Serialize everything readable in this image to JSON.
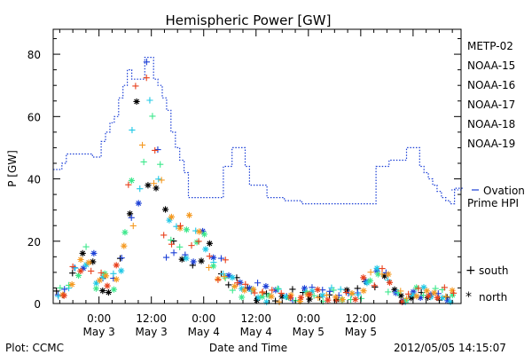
{
  "chart_data": {
    "type": "scatter",
    "title": "Hemispheric Power [GW]",
    "ylabel": "P [GW]",
    "xlabel": "Date and Time",
    "ylim": [
      0,
      88
    ],
    "xlim_hours": [
      -10.5,
      83
    ],
    "yticks": [
      0,
      20,
      40,
      60,
      80
    ],
    "xticks": [
      {
        "h": 0,
        "time": "0:00",
        "date": "May 3"
      },
      {
        "h": 12,
        "time": "12:00",
        "date": "May 3"
      },
      {
        "h": 24,
        "time": "0:00",
        "date": "May 4"
      },
      {
        "h": 36,
        "time": "12:00",
        "date": "May 4"
      },
      {
        "h": 48,
        "time": "0:00",
        "date": "May 5"
      },
      {
        "h": 60,
        "time": "12:00",
        "date": "May 5"
      }
    ],
    "legend": [
      {
        "name": "METP-02",
        "color": "#000000"
      },
      {
        "name": "NOAA-15",
        "color": "#1b3fd6"
      },
      {
        "name": "NOAA-16",
        "color": "#1ec8e6"
      },
      {
        "name": "NOAA-17",
        "color": "#3de88c"
      },
      {
        "name": "NOAA-18",
        "color": "#f59a22"
      },
      {
        "name": "NOAA-19",
        "color": "#e8401c"
      }
    ],
    "ovation": {
      "label_line1": "Ovation",
      "label_line2": "Prime HPI",
      "color": "#1b3fd6",
      "step_hours": 1,
      "values": [
        43,
        43,
        45,
        48,
        48,
        48,
        48,
        48,
        48,
        47,
        47,
        52,
        55,
        58,
        60,
        66,
        70,
        75,
        72,
        72,
        72,
        79,
        79,
        72,
        70,
        66,
        62,
        55,
        50,
        46,
        42,
        34,
        34,
        34,
        34,
        34,
        34,
        34,
        34,
        44,
        44,
        50,
        50,
        50,
        44,
        38,
        38,
        38,
        38,
        34,
        34,
        34,
        34,
        33,
        33,
        33,
        33,
        32,
        32,
        32,
        32,
        32,
        32,
        32,
        32,
        32,
        32,
        32,
        32,
        32,
        32,
        32,
        32,
        32,
        44,
        44,
        44,
        46,
        46,
        46,
        46,
        50,
        50,
        50,
        44,
        42,
        40,
        38,
        36,
        34,
        33,
        32,
        37,
        37,
        37
      ]
    },
    "marker_legend": [
      {
        "symbol": "+",
        "label": "south"
      },
      {
        "symbol": "*",
        "label": "north"
      }
    ],
    "footer": {
      "plot_label": "Plot: CCMC",
      "timestamp": "2012/05/05 14:15:07"
    }
  }
}
